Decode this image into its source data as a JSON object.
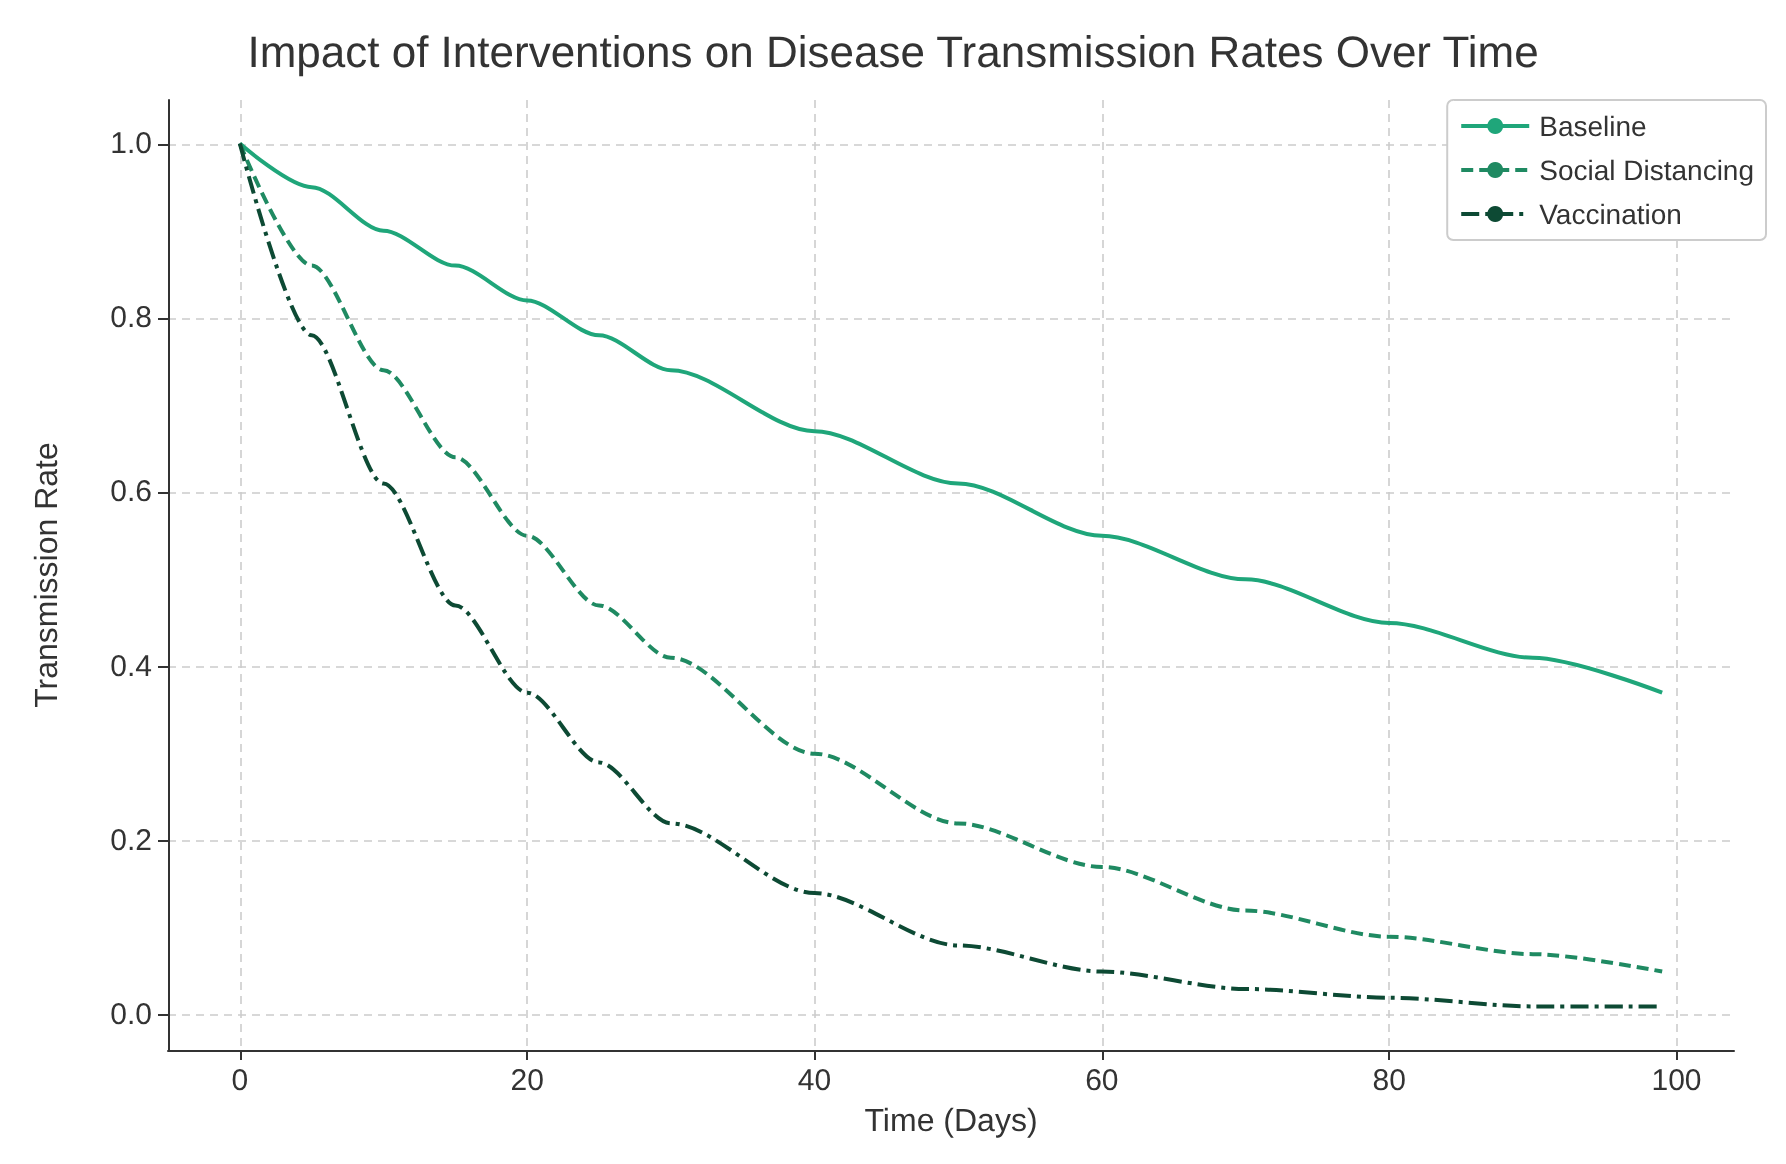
{
  "chart_data": {
    "type": "line",
    "title": "Impact of Interventions on Disease Transmission Rates Over Time",
    "xlabel": "Time (Days)",
    "ylabel": "Transmission Rate",
    "x": [
      0,
      5,
      10,
      15,
      20,
      25,
      30,
      40,
      50,
      60,
      70,
      80,
      90,
      99
    ],
    "series": [
      {
        "name": "Baseline",
        "color": "#1fa67a",
        "line_style": "solid",
        "values": [
          1.0,
          0.95,
          0.9,
          0.86,
          0.82,
          0.78,
          0.74,
          0.67,
          0.61,
          0.55,
          0.5,
          0.45,
          0.41,
          0.37
        ]
      },
      {
        "name": "Social Distancing",
        "color": "#1f8a62",
        "line_style": "dashed",
        "values": [
          1.0,
          0.86,
          0.74,
          0.64,
          0.55,
          0.47,
          0.41,
          0.3,
          0.22,
          0.17,
          0.12,
          0.09,
          0.07,
          0.05
        ]
      },
      {
        "name": "Vaccination",
        "color": "#0d4a34",
        "line_style": "dashdot",
        "values": [
          1.0,
          0.78,
          0.61,
          0.47,
          0.37,
          0.29,
          0.22,
          0.14,
          0.08,
          0.05,
          0.03,
          0.02,
          0.01,
          0.01
        ]
      }
    ],
    "xlim": [
      -5,
      104
    ],
    "xticks": [
      0,
      20,
      40,
      60,
      80,
      100
    ],
    "ylim": [
      -0.04,
      1.05
    ],
    "yticks": [
      {
        "value": 0,
        "label": "0.0"
      },
      {
        "value": 0.2,
        "label": "0.2"
      },
      {
        "value": 0.4,
        "label": "0.4"
      },
      {
        "value": 0.6,
        "label": "0.6"
      },
      {
        "value": 0.8,
        "label": "0.8"
      },
      {
        "value": 1,
        "label": "1.0"
      }
    ],
    "grid": true,
    "legend": "top right",
    "marker": "none"
  }
}
